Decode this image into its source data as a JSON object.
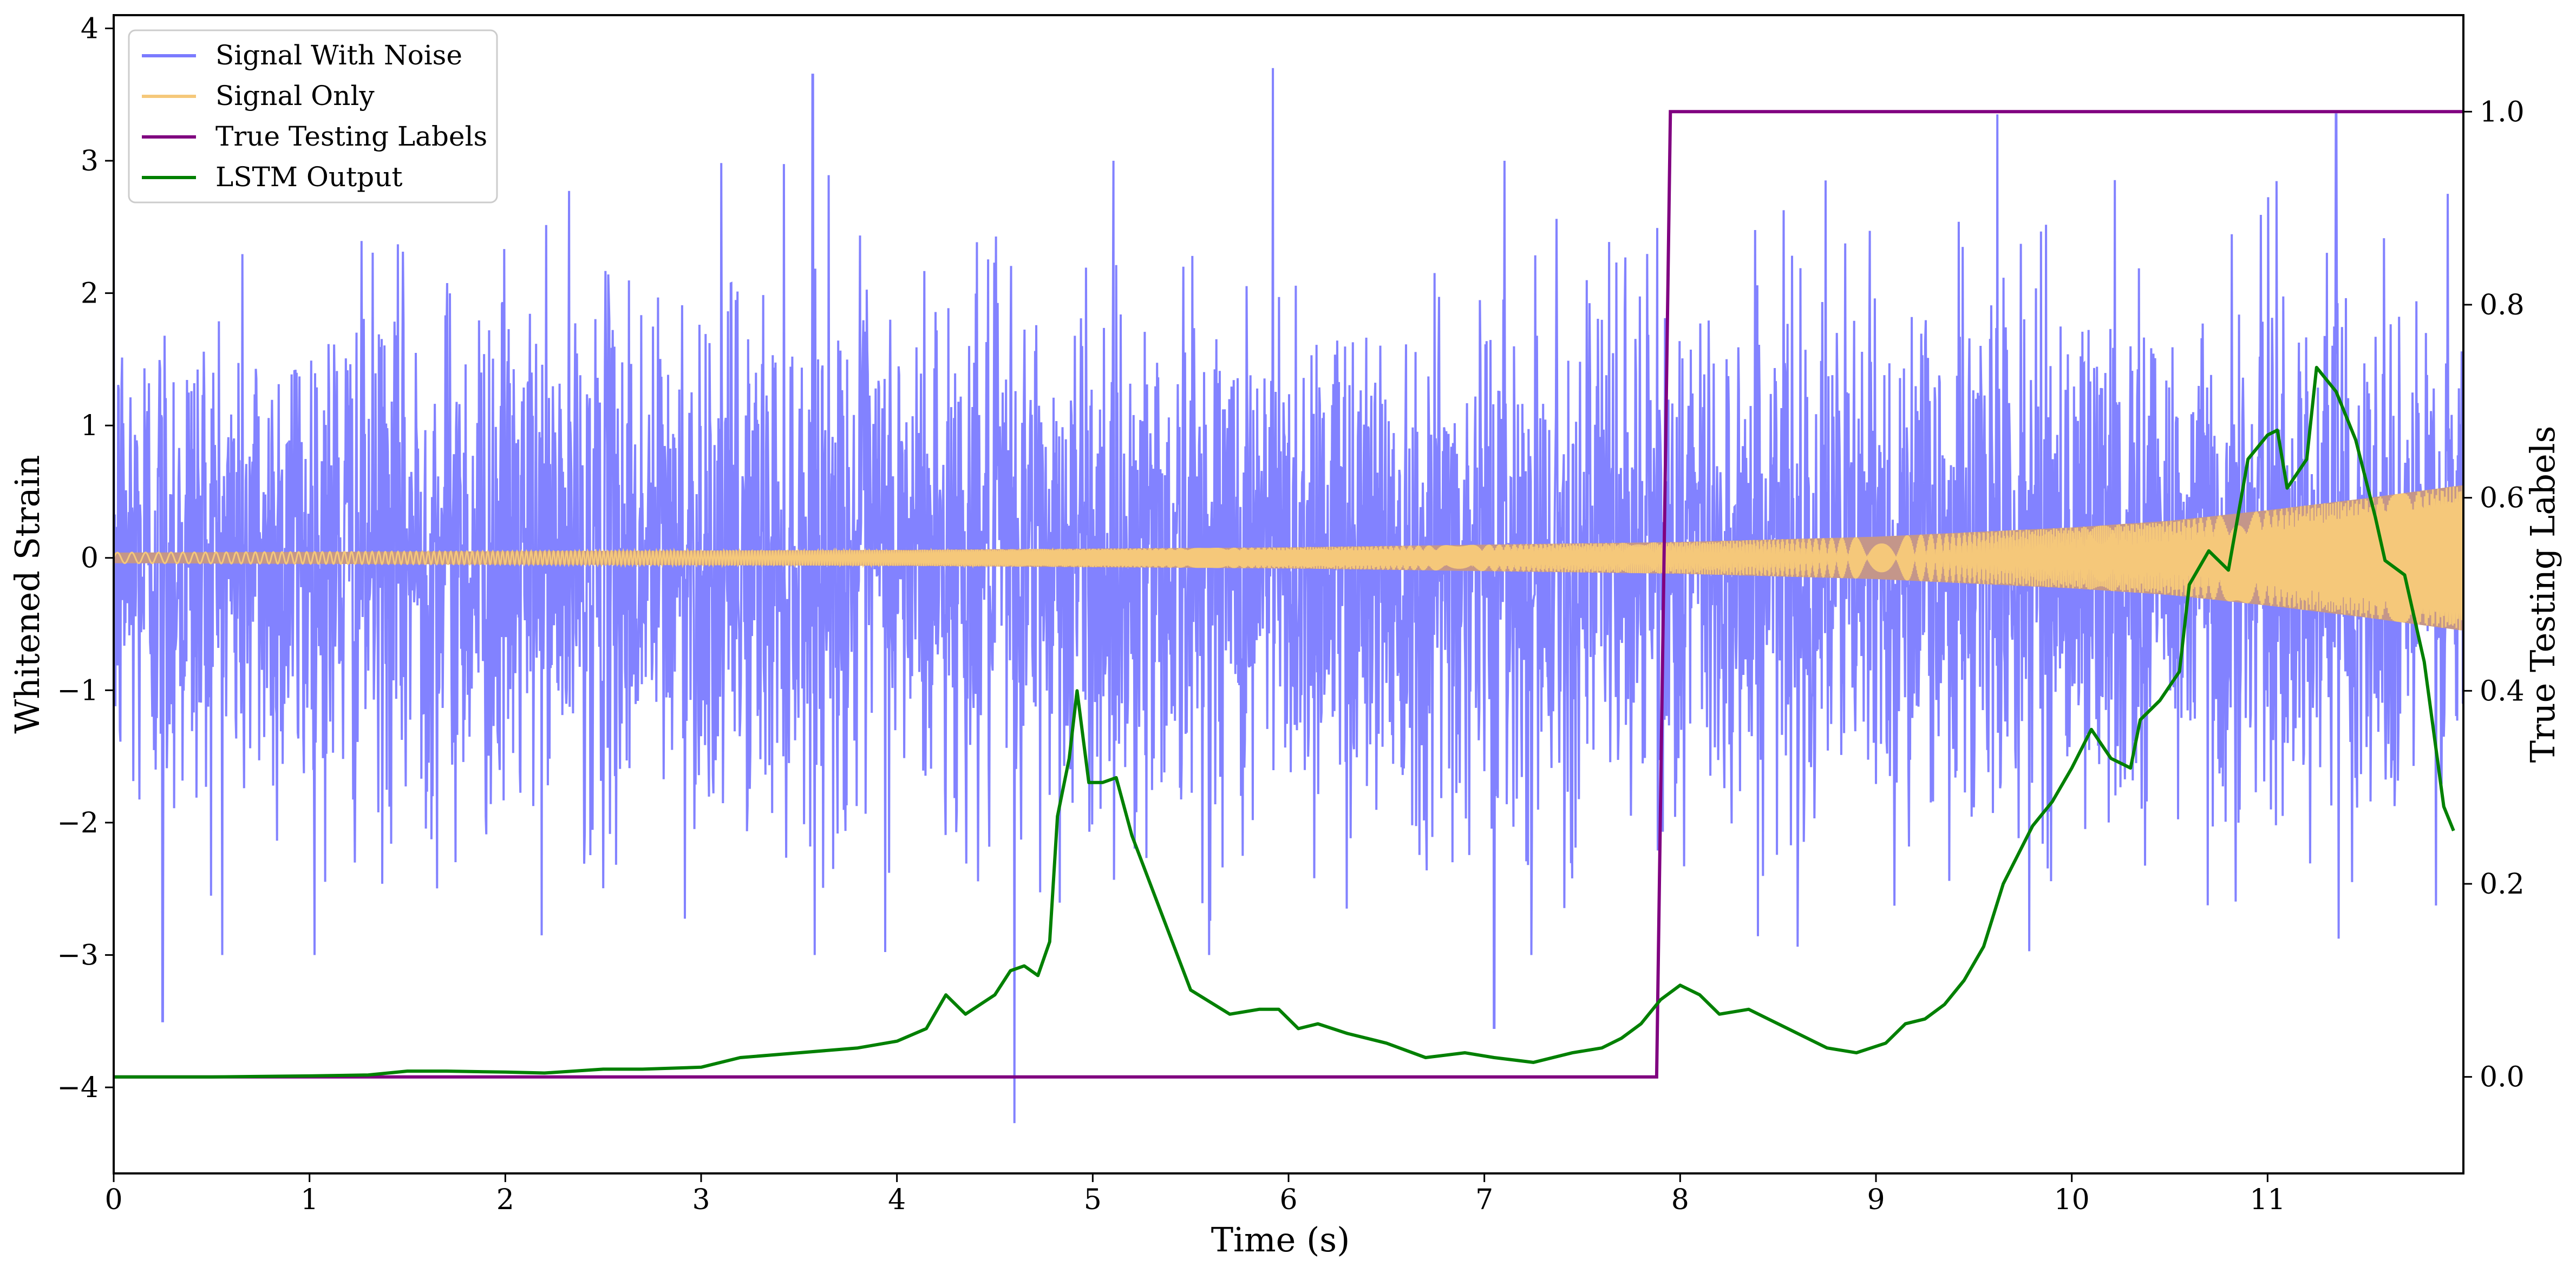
{
  "chart_data": {
    "type": "line",
    "xlabel": "Time (s)",
    "ylabel_left": "Whitened Strain",
    "ylabel_right": "True Testing Labels",
    "xlim": [
      0,
      12
    ],
    "ylim_left": [
      -4.65,
      4.1
    ],
    "ylim_right": [
      -0.1,
      1.1
    ],
    "x_ticks": [
      "0",
      "1",
      "2",
      "3",
      "4",
      "5",
      "6",
      "7",
      "8",
      "9",
      "10",
      "11"
    ],
    "y_left_ticks": [
      "4",
      "3",
      "2",
      "1",
      "0",
      "−1",
      "−2",
      "−3",
      "−4"
    ],
    "y_right_ticks": [
      "1.0",
      "0.8",
      "0.6",
      "0.4",
      "0.2",
      "0.0"
    ],
    "legend_position": "upper left",
    "colors": {
      "noise": "#7b7bff",
      "signal": "#f5c87a",
      "signal_fill": "#c4968a",
      "labels": "#800080",
      "lstm": "#008000"
    },
    "series": [
      {
        "name": "Signal With Noise",
        "axis": "left",
        "description_stats": {
          "mean": 0,
          "typical_amplitude": 1.6,
          "max": 3.7,
          "min": -4.27
        },
        "peaks": [
          {
            "x": 0.25,
            "y": -3.5
          },
          {
            "x": 3.57,
            "y": 3.65
          },
          {
            "x": 4.6,
            "y": -4.27
          },
          {
            "x": 5.92,
            "y": 3.7
          },
          {
            "x": 7.05,
            "y": -3.55
          },
          {
            "x": 9.62,
            "y": 3.35
          },
          {
            "x": 11.35,
            "y": 3.35
          }
        ]
      },
      {
        "name": "Signal Only",
        "axis": "left",
        "envelope": [
          {
            "x": 0,
            "y": 0.04
          },
          {
            "x": 2,
            "y": 0.05
          },
          {
            "x": 4,
            "y": 0.06
          },
          {
            "x": 6,
            "y": 0.08
          },
          {
            "x": 8,
            "y": 0.12
          },
          {
            "x": 9,
            "y": 0.16
          },
          {
            "x": 10,
            "y": 0.23
          },
          {
            "x": 10.5,
            "y": 0.28
          },
          {
            "x": 11,
            "y": 0.36
          },
          {
            "x": 11.5,
            "y": 0.45
          },
          {
            "x": 12,
            "y": 0.55
          }
        ]
      },
      {
        "name": "True Testing Labels",
        "axis": "right",
        "x": [
          0,
          7.88,
          7.95,
          12
        ],
        "values": [
          0,
          0,
          1,
          1
        ]
      },
      {
        "name": "LSTM Output",
        "axis": "right",
        "x": [
          0,
          0.5,
          1.0,
          1.3,
          1.5,
          1.7,
          2.0,
          2.2,
          2.5,
          2.7,
          3.0,
          3.2,
          3.5,
          3.8,
          4.0,
          4.15,
          4.25,
          4.35,
          4.5,
          4.58,
          4.65,
          4.72,
          4.78,
          4.82,
          4.88,
          4.92,
          4.98,
          5.05,
          5.12,
          5.2,
          5.35,
          5.5,
          5.7,
          5.85,
          5.95,
          6.05,
          6.15,
          6.3,
          6.5,
          6.7,
          6.9,
          7.05,
          7.25,
          7.45,
          7.6,
          7.7,
          7.8,
          7.9,
          8.0,
          8.1,
          8.2,
          8.35,
          8.45,
          8.6,
          8.75,
          8.9,
          9.05,
          9.15,
          9.25,
          9.35,
          9.45,
          9.55,
          9.65,
          9.8,
          9.9,
          10.0,
          10.1,
          10.2,
          10.3,
          10.35,
          10.45,
          10.55,
          10.6,
          10.7,
          10.8,
          10.9,
          11.0,
          11.05,
          11.1,
          11.2,
          11.25,
          11.35,
          11.45,
          11.55,
          11.6,
          11.7,
          11.8,
          11.9,
          11.95
        ],
        "values": [
          0.0,
          0.0,
          0.001,
          0.002,
          0.006,
          0.006,
          0.005,
          0.004,
          0.008,
          0.008,
          0.01,
          0.02,
          0.025,
          0.03,
          0.037,
          0.05,
          0.085,
          0.065,
          0.085,
          0.11,
          0.115,
          0.105,
          0.14,
          0.27,
          0.33,
          0.4,
          0.305,
          0.305,
          0.31,
          0.25,
          0.17,
          0.09,
          0.065,
          0.07,
          0.07,
          0.05,
          0.055,
          0.045,
          0.035,
          0.02,
          0.025,
          0.02,
          0.015,
          0.025,
          0.03,
          0.04,
          0.055,
          0.08,
          0.095,
          0.085,
          0.065,
          0.07,
          0.06,
          0.045,
          0.03,
          0.025,
          0.035,
          0.055,
          0.06,
          0.075,
          0.1,
          0.135,
          0.2,
          0.26,
          0.285,
          0.32,
          0.36,
          0.33,
          0.32,
          0.37,
          0.39,
          0.42,
          0.51,
          0.545,
          0.525,
          0.64,
          0.665,
          0.67,
          0.61,
          0.64,
          0.735,
          0.71,
          0.66,
          0.58,
          0.535,
          0.52,
          0.43,
          0.28,
          0.255
        ]
      }
    ]
  }
}
